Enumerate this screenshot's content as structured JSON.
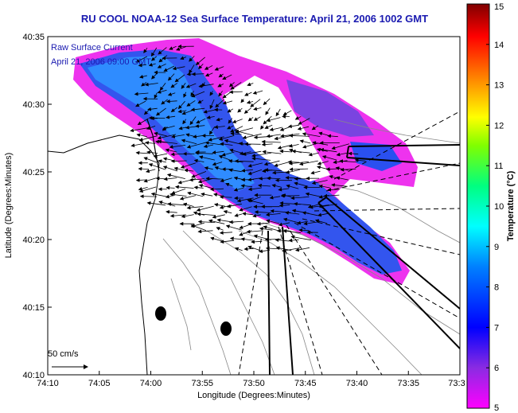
{
  "title": "RU COOL  NOAA-12  Sea Surface Temperature:  April 21, 2006 1002 GMT",
  "legend": {
    "line1": "Raw Surface Current",
    "line2": "April 21, 2006 09:00 GMT"
  },
  "scale": {
    "label": "50 cm/s"
  },
  "x_axis": {
    "label": "Longitude (Degrees:Minutes)",
    "ticks": [
      "74:10",
      "74:05",
      "74:00",
      "73:55",
      "73:50",
      "73:45",
      "73:40",
      "73:35",
      "73:3"
    ]
  },
  "y_axis": {
    "label": "Latitude (Degrees:Minutes)",
    "ticks": [
      "40:35",
      "40:30",
      "40:25",
      "40:20",
      "40:15",
      "40:10"
    ]
  },
  "colorbar": {
    "label": "Temperature (°C)",
    "ticks": [
      "15",
      "14",
      "13",
      "12",
      "11",
      "10",
      "9",
      "8",
      "7",
      "6",
      "5"
    ],
    "min": 5,
    "max": 15,
    "colors": [
      "#ff00ff",
      "#8a2be2",
      "#0000ff",
      "#0080ff",
      "#00ffff",
      "#00ff80",
      "#80ff00",
      "#ffff00",
      "#ff8000",
      "#ff0000",
      "#800000"
    ]
  },
  "sst_colors": {
    "magenta": "#ee33ee",
    "purple": "#8844dd",
    "blue": "#2255ee",
    "lightblue": "#3399ff"
  }
}
